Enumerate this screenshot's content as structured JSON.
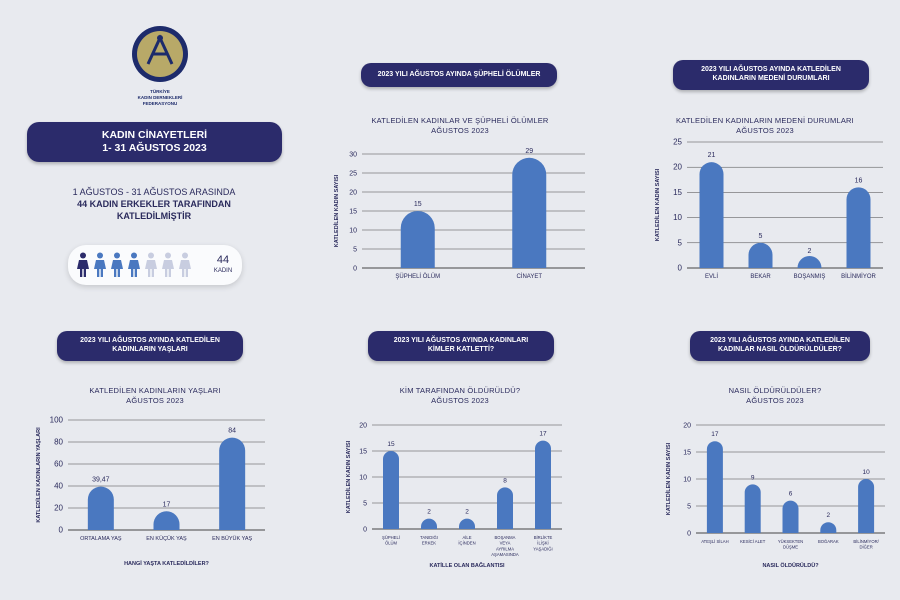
{
  "logo": {
    "text_lines": [
      "TÜRKİYE",
      "KADIN DERNEKLERİ",
      "FEDERASYONU"
    ],
    "colors": {
      "ring": "#1d2b6b",
      "fill": "#b8a968"
    }
  },
  "header": {
    "line1": "KADIN CİNAYETLERİ",
    "line2": "1- 31 AĞUSTOS 2023"
  },
  "summary": {
    "line1": "1 AĞUSTOS - 31 AĞUSTOS ARASINDA",
    "line2": "44 KADIN ERKEKLER TARAFINDAN",
    "line3": "KATLEDİLMİŞTİR"
  },
  "counter": {
    "value": "44",
    "label": "KADIN",
    "icons_total": 7,
    "icons_dark": 1,
    "icons_blue": 3,
    "colors": {
      "dark": "#2b2b6b",
      "blue": "#4a78c0",
      "light": "#c8cde0"
    }
  },
  "colors": {
    "bar": "#4a78c0",
    "pill": "#2b2b6b",
    "grid": "#444444",
    "text": "#2a2a5c"
  },
  "panels": {
    "p1": {
      "pill": [
        "2023 YILI AĞUSTOS AYINDA ŞÜPHELİ ÖLÜMLER"
      ],
      "title": [
        "KATLEDİLEN KADINLAR VE ŞÜPHELİ ÖLÜMLER",
        "AĞUSTOS 2023"
      ]
    },
    "p2": {
      "pill": [
        "2023 YILI AĞUSTOS AYINDA KATLEDİLEN",
        "KADINLARIN MEDENİ DURUMLARI"
      ],
      "title": [
        "KATLEDİLEN KADINLARIN MEDENİ DURUMLARI",
        "AĞUSTOS 2023"
      ]
    },
    "p3": {
      "pill": [
        "2023 YILI AĞUSTOS AYINDA KATLEDİLEN",
        "KADINLARIN YAŞLARI"
      ],
      "title": [
        "KATLEDİLEN KADINLARIN YAŞLARI",
        "AĞUSTOS 2023"
      ]
    },
    "p4": {
      "pill": [
        "2023 YILI AĞUSTOS AYINDA KADINLARI",
        "KİMLER KATLETTİ?"
      ],
      "title": [
        "KİM TARAFINDAN ÖLDÜRÜLDÜ?",
        "AĞUSTOS 2023"
      ]
    },
    "p5": {
      "pill": [
        "2023 YILI AĞUSTOS AYINDA KATLEDİLEN",
        "KADINLAR NASIL ÖLDÜRÜLDÜLER?"
      ],
      "title": [
        "NASIL ÖLDÜRÜLDÜLER?",
        "AĞUSTOS 2023"
      ]
    }
  },
  "chart_data": [
    {
      "type": "bar",
      "categories": [
        "ŞÜPHELİ ÖLÜM",
        "CİNAYET"
      ],
      "values": [
        15,
        29
      ],
      "data_labels": [
        "15",
        "29"
      ],
      "ylim": [
        0,
        30
      ],
      "yticks": [
        0,
        5,
        10,
        15,
        20,
        25,
        30
      ],
      "ylabel": "KATLEDİLEN KADIN SAYISI",
      "xlabel": "",
      "grid": true
    },
    {
      "type": "bar",
      "categories": [
        "EVLİ",
        "BEKAR",
        "BOŞANMIŞ",
        "BİLİNMİYOR"
      ],
      "values": [
        21,
        5,
        2,
        16
      ],
      "data_labels": [
        "21",
        "5",
        "2",
        "16"
      ],
      "ylim": [
        0,
        25
      ],
      "yticks": [
        0,
        5,
        10,
        15,
        20,
        25
      ],
      "ylabel": "KATLEDİLEN KADIN SAYISI",
      "xlabel": "",
      "grid": true
    },
    {
      "type": "bar",
      "categories": [
        "ORTALAMA YAŞ",
        "EN KÜÇÜK YAŞ",
        "EN BÜYÜK YAŞ"
      ],
      "values": [
        39.47,
        17,
        84
      ],
      "data_labels": [
        "39,47",
        "17",
        "84"
      ],
      "ylim": [
        0,
        100
      ],
      "yticks": [
        0,
        20,
        40,
        60,
        80,
        100
      ],
      "ylabel": "KATLEDİLEN KADINLARIN YAŞLARI",
      "xlabel": "HANGİ YAŞTA KATLEDİLDİLER?",
      "grid": true
    },
    {
      "type": "bar",
      "categories": [
        [
          "ŞÜPHELİ",
          "ÖLÜM"
        ],
        [
          "TANIDIĞI",
          "ERKEK"
        ],
        [
          "AİLE",
          "İÇİNDEN"
        ],
        [
          "BOŞANMA",
          "VEYA",
          "AYRILMA",
          "AŞAMASINDA"
        ],
        [
          "BİRLİKTE",
          "İLİŞKİ",
          "YAŞADIĞI"
        ]
      ],
      "values": [
        15,
        2,
        2,
        8,
        17
      ],
      "data_labels": [
        "15",
        "2",
        "2",
        "8",
        "17"
      ],
      "ylim": [
        0,
        20
      ],
      "yticks": [
        0,
        5,
        10,
        15,
        20
      ],
      "ylabel": "KATLEDİLEN KADIN SAYISI",
      "xlabel": "KATİLLE OLAN BAĞLANTISI",
      "grid": true
    },
    {
      "type": "bar",
      "categories": [
        [
          "ATEŞLİ SİLAH"
        ],
        [
          "KESİCİ ALET"
        ],
        [
          "YÜKSEKTEN",
          "DÜŞME"
        ],
        [
          "BOĞARAK"
        ],
        [
          "BİLİNMİYOR/",
          "DİĞER"
        ]
      ],
      "values": [
        17,
        9,
        6,
        2,
        10
      ],
      "data_labels": [
        "17",
        "9",
        "6",
        "2",
        "10"
      ],
      "ylim": [
        0,
        20
      ],
      "yticks": [
        0,
        5,
        10,
        15,
        20
      ],
      "ylabel": "KATLEDİLEN KADIN SAYISI",
      "xlabel": "NASIL ÖLDÜRÜLDÜ?",
      "grid": true
    }
  ]
}
